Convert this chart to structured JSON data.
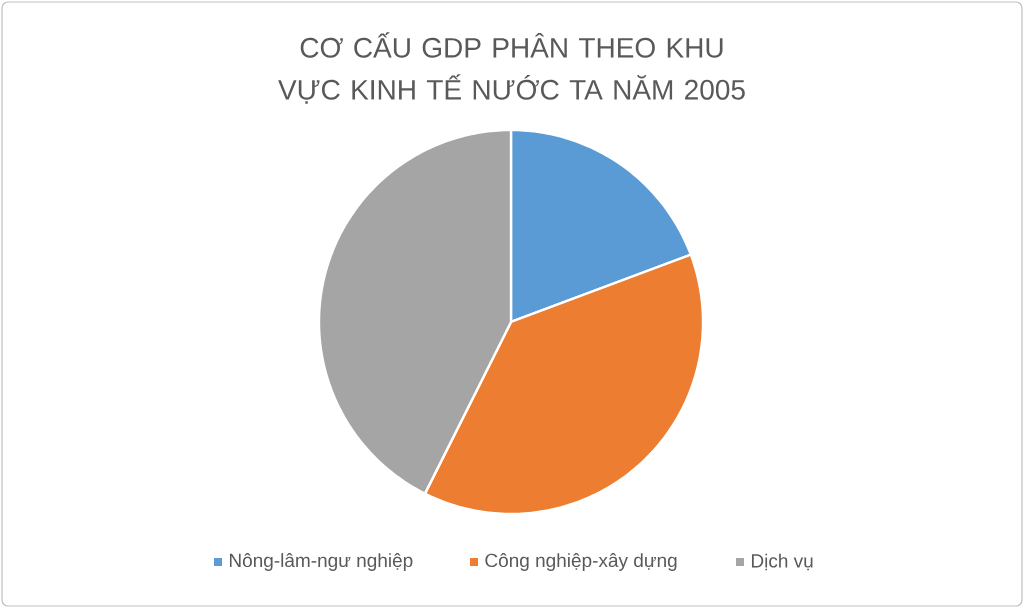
{
  "chart_data": {
    "type": "pie",
    "title": "CƠ CẤU GDP PHÂN THEO KHU VỰC KINH TẾ NƯỚC TA NĂM 2005",
    "categories": [
      "Nông-lâm-ngư nghiệp",
      "Công nghiệp-xây dựng",
      "Dịch vụ"
    ],
    "values": [
      19.3,
      38.1,
      42.6
    ],
    "colors": [
      "#5b9bd5",
      "#ed7d31",
      "#a5a5a5"
    ],
    "legend": "bottom"
  }
}
